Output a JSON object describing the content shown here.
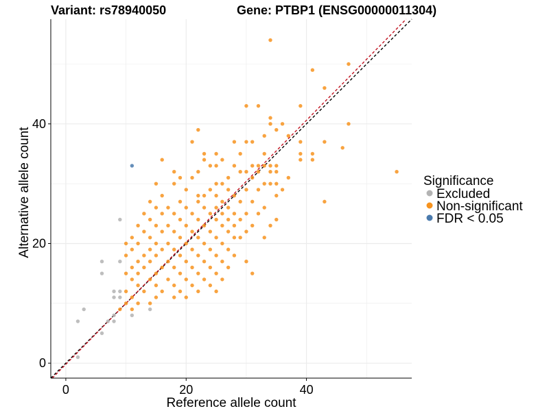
{
  "title_left": "Variant: rs78940050",
  "title_right": "Gene: PTBP1 (ENSG00000011304)",
  "colors": {
    "Excluded": "#b3b3b3",
    "Non-significant": "#f7931e",
    "FDR < 0.05": "#4a7aad",
    "identity_line": "#000000",
    "fit_line": "#c0101e",
    "grid": "#ebebeb"
  },
  "legend": {
    "title": "Significance",
    "placement": "right",
    "items": [
      "Excluded",
      "Non-significant",
      "FDR < 0.05"
    ]
  },
  "chart_data": {
    "type": "scatter",
    "xlabel": "Reference allele count",
    "ylabel": "Alternative allele count",
    "xlim": [
      -2.5,
      57.5
    ],
    "ylim": [
      -2.5,
      57.5
    ],
    "xticks": [
      0,
      20,
      40
    ],
    "yticks": [
      0,
      20,
      40
    ],
    "grid": true,
    "lines": [
      {
        "kind": "identity",
        "style": "dashed",
        "color": "identity_line",
        "slope": 1,
        "intercept": 0
      },
      {
        "kind": "fit",
        "style": "dashed",
        "color": "fit_line",
        "slope": 1.02,
        "intercept": -0.2
      }
    ],
    "series": [
      {
        "name": "Excluded",
        "points": [
          [
            2,
            1
          ],
          [
            2,
            7
          ],
          [
            3,
            9
          ],
          [
            6,
            5
          ],
          [
            6,
            15
          ],
          [
            6,
            17
          ],
          [
            7,
            7
          ],
          [
            8,
            7
          ],
          [
            8,
            8
          ],
          [
            8,
            11
          ],
          [
            8,
            12
          ],
          [
            9,
            11
          ],
          [
            9,
            12
          ],
          [
            9,
            17
          ],
          [
            9,
            24
          ],
          [
            11,
            8
          ],
          [
            14,
            9
          ]
        ]
      },
      {
        "name": "Non-significant",
        "points": [
          [
            34,
            54
          ],
          [
            41,
            49
          ],
          [
            47,
            50
          ],
          [
            43,
            46
          ],
          [
            30,
            43
          ],
          [
            32,
            43
          ],
          [
            39,
            43
          ],
          [
            34,
            41
          ],
          [
            34,
            40
          ],
          [
            36,
            40
          ],
          [
            47,
            40
          ],
          [
            22,
            39
          ],
          [
            35,
            39
          ],
          [
            33,
            38
          ],
          [
            37,
            38
          ],
          [
            21,
            37
          ],
          [
            28,
            37
          ],
          [
            30,
            37
          ],
          [
            31,
            37
          ],
          [
            39,
            37
          ],
          [
            23,
            35
          ],
          [
            25,
            35
          ],
          [
            29,
            35
          ],
          [
            33,
            35
          ],
          [
            39,
            35
          ],
          [
            41,
            35
          ],
          [
            26,
            34
          ],
          [
            23,
            34
          ],
          [
            16,
            34
          ],
          [
            39,
            34
          ],
          [
            41,
            34
          ],
          [
            46,
            36
          ],
          [
            43,
            37
          ],
          [
            55,
            32
          ],
          [
            43,
            27
          ],
          [
            24,
            33
          ],
          [
            25,
            33
          ],
          [
            28,
            33
          ],
          [
            31,
            33
          ],
          [
            32,
            33
          ],
          [
            33,
            33
          ],
          [
            34,
            33
          ],
          [
            35,
            33
          ],
          [
            18,
            32
          ],
          [
            22,
            32
          ],
          [
            29,
            32
          ],
          [
            30,
            32
          ],
          [
            32,
            32
          ],
          [
            34,
            32
          ],
          [
            35,
            32
          ],
          [
            19,
            31
          ],
          [
            21,
            31
          ],
          [
            27,
            31
          ],
          [
            31,
            31
          ],
          [
            37,
            31
          ],
          [
            15,
            30
          ],
          [
            18,
            30
          ],
          [
            25,
            30
          ],
          [
            26,
            30
          ],
          [
            33,
            30
          ],
          [
            34,
            30
          ],
          [
            35,
            30
          ],
          [
            20,
            29
          ],
          [
            24,
            29
          ],
          [
            27,
            29
          ],
          [
            30,
            29
          ],
          [
            32,
            29
          ],
          [
            36,
            29
          ],
          [
            16,
            28
          ],
          [
            22,
            28
          ],
          [
            23,
            28
          ],
          [
            25,
            28
          ],
          [
            28,
            28
          ],
          [
            35,
            28
          ],
          [
            14,
            27
          ],
          [
            19,
            27
          ],
          [
            22,
            27
          ],
          [
            26,
            27
          ],
          [
            29,
            27
          ],
          [
            31,
            27
          ],
          [
            15,
            26
          ],
          [
            17,
            26
          ],
          [
            20,
            26
          ],
          [
            23,
            26
          ],
          [
            25,
            26
          ],
          [
            27,
            26
          ],
          [
            33,
            26
          ],
          [
            13,
            25
          ],
          [
            16,
            25
          ],
          [
            18,
            25
          ],
          [
            21,
            25
          ],
          [
            24,
            25
          ],
          [
            26,
            25
          ],
          [
            28,
            25
          ],
          [
            30,
            25
          ],
          [
            32,
            25
          ],
          [
            14,
            24
          ],
          [
            19,
            24
          ],
          [
            22,
            24
          ],
          [
            25,
            24
          ],
          [
            27,
            24
          ],
          [
            29,
            24
          ],
          [
            35,
            24
          ],
          [
            12,
            23
          ],
          [
            15,
            23
          ],
          [
            17,
            23
          ],
          [
            20,
            23
          ],
          [
            23,
            23
          ],
          [
            26,
            23
          ],
          [
            28,
            23
          ],
          [
            31,
            23
          ],
          [
            34,
            23
          ],
          [
            13,
            22
          ],
          [
            16,
            22
          ],
          [
            18,
            22
          ],
          [
            21,
            22
          ],
          [
            24,
            22
          ],
          [
            27,
            22
          ],
          [
            30,
            22
          ],
          [
            11,
            21
          ],
          [
            14,
            21
          ],
          [
            19,
            21
          ],
          [
            22,
            21
          ],
          [
            25,
            21
          ],
          [
            28,
            21
          ],
          [
            29,
            21
          ],
          [
            33,
            21
          ],
          [
            10,
            20
          ],
          [
            12,
            20
          ],
          [
            15,
            20
          ],
          [
            17,
            20
          ],
          [
            20,
            20
          ],
          [
            23,
            20
          ],
          [
            26,
            20
          ],
          [
            11,
            19
          ],
          [
            14,
            19
          ],
          [
            16,
            19
          ],
          [
            18,
            19
          ],
          [
            21,
            19
          ],
          [
            24,
            19
          ],
          [
            27,
            19
          ],
          [
            10,
            18
          ],
          [
            13,
            18
          ],
          [
            15,
            18
          ],
          [
            19,
            18
          ],
          [
            22,
            18
          ],
          [
            25,
            18
          ],
          [
            28,
            18
          ],
          [
            12,
            17
          ],
          [
            14,
            17
          ],
          [
            17,
            17
          ],
          [
            20,
            17
          ],
          [
            23,
            17
          ],
          [
            26,
            17
          ],
          [
            30,
            17
          ],
          [
            11,
            16
          ],
          [
            13,
            16
          ],
          [
            16,
            16
          ],
          [
            18,
            16
          ],
          [
            21,
            16
          ],
          [
            24,
            16
          ],
          [
            27,
            16
          ],
          [
            10,
            15
          ],
          [
            12,
            15
          ],
          [
            15,
            15
          ],
          [
            19,
            15
          ],
          [
            22,
            15
          ],
          [
            25,
            15
          ],
          [
            31,
            15
          ],
          [
            11,
            14
          ],
          [
            14,
            14
          ],
          [
            17,
            14
          ],
          [
            20,
            14
          ],
          [
            23,
            14
          ],
          [
            26,
            14
          ],
          [
            12,
            13
          ],
          [
            15,
            13
          ],
          [
            18,
            13
          ],
          [
            21,
            13
          ],
          [
            24,
            13
          ],
          [
            10,
            12
          ],
          [
            13,
            12
          ],
          [
            16,
            12
          ],
          [
            19,
            12
          ],
          [
            22,
            12
          ],
          [
            25,
            12
          ],
          [
            11,
            11
          ],
          [
            15,
            11
          ],
          [
            18,
            11
          ],
          [
            20,
            11
          ],
          [
            10,
            10
          ],
          [
            12,
            10
          ],
          [
            14,
            10
          ],
          [
            9,
            9
          ],
          [
            11,
            9
          ]
        ]
      },
      {
        "name": "FDR < 0.05",
        "points": [
          [
            11,
            33
          ]
        ]
      }
    ]
  }
}
